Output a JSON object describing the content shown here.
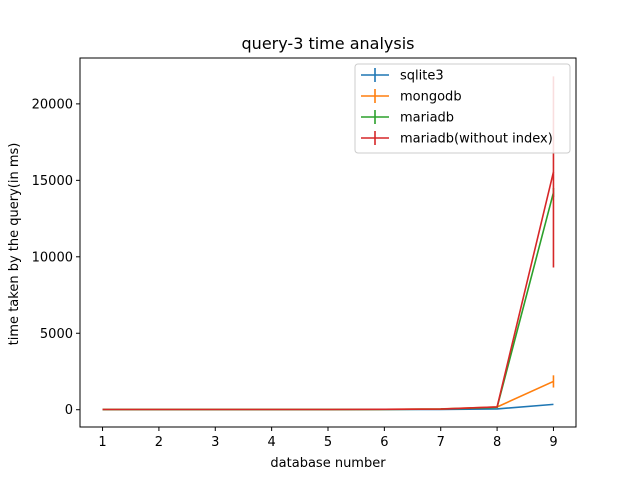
{
  "chart_data": {
    "type": "line",
    "title": "query-3 time analysis",
    "xlabel": "database number",
    "ylabel": "time taken by the query(in ms)",
    "x": [
      1,
      2,
      3,
      4,
      5,
      6,
      7,
      8,
      9
    ],
    "xlim": [
      0.6,
      9.4
    ],
    "ylim": [
      -1130,
      23000
    ],
    "xticks": [
      1,
      2,
      3,
      4,
      5,
      6,
      7,
      8,
      9
    ],
    "yticks": [
      0,
      5000,
      10000,
      15000,
      20000
    ],
    "grid": false,
    "legend_position": "top-right",
    "series": [
      {
        "name": "sqlite3",
        "color": "#1f77b4",
        "values": [
          10,
          10,
          10,
          10,
          10,
          15,
          20,
          50,
          350
        ],
        "errors": [
          0,
          0,
          0,
          0,
          0,
          0,
          0,
          0,
          0
        ]
      },
      {
        "name": "mongodb",
        "color": "#ff7f0e",
        "values": [
          20,
          20,
          20,
          20,
          20,
          30,
          50,
          180,
          1850
        ],
        "errors": [
          0,
          0,
          0,
          0,
          0,
          0,
          0,
          0,
          400
        ]
      },
      {
        "name": "mariadb",
        "color": "#2ca02c",
        "values": [
          10,
          10,
          10,
          10,
          10,
          20,
          40,
          150,
          14200
        ],
        "errors": [
          0,
          0,
          0,
          0,
          0,
          0,
          0,
          0,
          300
        ]
      },
      {
        "name": "mariadb(without index)",
        "color": "#d62728",
        "values": [
          15,
          15,
          15,
          15,
          15,
          25,
          45,
          180,
          15550
        ],
        "errors": [
          0,
          0,
          0,
          0,
          0,
          0,
          0,
          0,
          6250
        ]
      }
    ]
  }
}
